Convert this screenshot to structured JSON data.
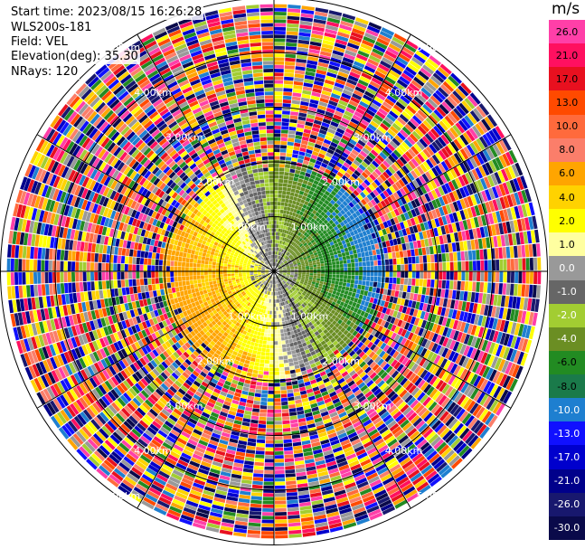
{
  "header": {
    "start_time": "Start time: 2023/08/15 16:26:28",
    "site": "WLS200s-181",
    "field": "Field: VEL",
    "elevation": "Elevation(deg): 35.30",
    "nrays": "NRays: 120"
  },
  "ring_labels": [
    "1.00km",
    "2.00km",
    "3.00km",
    "4.00km",
    "5.00km"
  ],
  "colorbar": {
    "unit": "m/s",
    "labels": [
      "26.0",
      "21.0",
      "17.0",
      "13.0",
      "10.0",
      "8.0",
      "6.0",
      "4.0",
      "2.0",
      "1.0",
      "0.0",
      "-1.0",
      "-2.0",
      "-4.0",
      "-6.0",
      "-8.0",
      "-10.0",
      "-13.0",
      "-17.0",
      "-21.0",
      "-26.0",
      "-30.0"
    ],
    "colors": [
      "#ff3fa8",
      "#ff1060",
      "#e8101f",
      "#ff4a00",
      "#ff6a3c",
      "#fb7e6a",
      "#ffa500",
      "#ffd200",
      "#ffff00",
      "#ffffa0",
      "#999999",
      "#666666",
      "#a2cd32",
      "#6b8e23",
      "#228b22",
      "#1a7a4a",
      "#1e7fd0",
      "#1010ff",
      "#0000cd",
      "#00008b",
      "#18186e",
      "#0a0a4a"
    ]
  }
}
